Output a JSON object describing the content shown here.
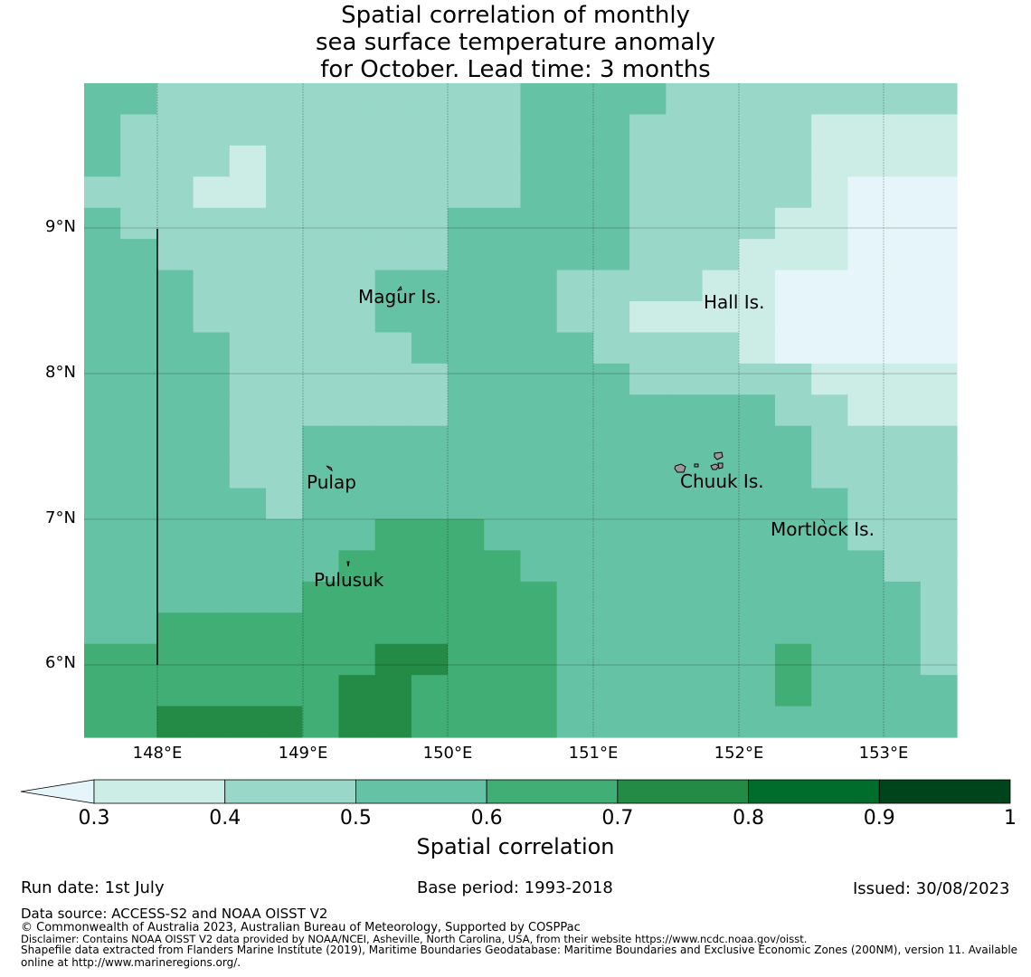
{
  "title": {
    "line1": "Spatial correlation of monthly",
    "line2": "sea surface temperature anomaly",
    "line3": "for October. Lead time: 3 months"
  },
  "map": {
    "lat_ticks": [
      "9°N",
      "8°N",
      "7°N",
      "6°N"
    ],
    "lon_ticks": [
      "148°E",
      "149°E",
      "150°E",
      "151°E",
      "152°E",
      "153°E"
    ],
    "places": {
      "magur": "Magur Is.",
      "hall": "Hall Is.",
      "pulap": "Pulap",
      "chuuk": "Chuuk Is.",
      "mortlock": "Mortlock Is.",
      "pulusuk": "Pulusuk"
    },
    "grid_values": [
      [
        0.55,
        0.55,
        0.45,
        0.45,
        0.45,
        0.45,
        0.45,
        0.45,
        0.45,
        0.45,
        0.45,
        0.45,
        0.55,
        0.55,
        0.55,
        0.55,
        0.45,
        0.45,
        0.45,
        0.45,
        0.45,
        0.45,
        0.45,
        0.45
      ],
      [
        0.55,
        0.45,
        0.45,
        0.45,
        0.45,
        0.45,
        0.45,
        0.45,
        0.45,
        0.45,
        0.45,
        0.45,
        0.55,
        0.55,
        0.55,
        0.45,
        0.45,
        0.45,
        0.45,
        0.45,
        0.35,
        0.35,
        0.35,
        0.35
      ],
      [
        0.55,
        0.45,
        0.45,
        0.45,
        0.35,
        0.45,
        0.45,
        0.45,
        0.45,
        0.45,
        0.45,
        0.45,
        0.55,
        0.55,
        0.55,
        0.45,
        0.45,
        0.45,
        0.45,
        0.45,
        0.35,
        0.35,
        0.35,
        0.35
      ],
      [
        0.45,
        0.45,
        0.45,
        0.35,
        0.35,
        0.45,
        0.45,
        0.45,
        0.45,
        0.45,
        0.45,
        0.45,
        0.55,
        0.55,
        0.55,
        0.45,
        0.45,
        0.45,
        0.45,
        0.45,
        0.35,
        0.25,
        0.25,
        0.25
      ],
      [
        0.55,
        0.45,
        0.45,
        0.45,
        0.45,
        0.45,
        0.45,
        0.45,
        0.45,
        0.45,
        0.55,
        0.55,
        0.55,
        0.55,
        0.55,
        0.45,
        0.45,
        0.45,
        0.45,
        0.35,
        0.35,
        0.25,
        0.25,
        0.25
      ],
      [
        0.55,
        0.55,
        0.45,
        0.45,
        0.45,
        0.45,
        0.45,
        0.45,
        0.45,
        0.45,
        0.55,
        0.55,
        0.55,
        0.55,
        0.55,
        0.45,
        0.45,
        0.45,
        0.35,
        0.35,
        0.35,
        0.25,
        0.25,
        0.25
      ],
      [
        0.55,
        0.55,
        0.55,
        0.45,
        0.45,
        0.45,
        0.45,
        0.45,
        0.55,
        0.55,
        0.55,
        0.55,
        0.55,
        0.45,
        0.45,
        0.45,
        0.45,
        0.35,
        0.35,
        0.25,
        0.25,
        0.25,
        0.25,
        0.25
      ],
      [
        0.55,
        0.55,
        0.55,
        0.45,
        0.45,
        0.45,
        0.45,
        0.45,
        0.55,
        0.55,
        0.55,
        0.55,
        0.55,
        0.45,
        0.45,
        0.35,
        0.35,
        0.35,
        0.35,
        0.25,
        0.25,
        0.25,
        0.25,
        0.25
      ],
      [
        0.55,
        0.55,
        0.55,
        0.55,
        0.45,
        0.45,
        0.45,
        0.45,
        0.45,
        0.55,
        0.55,
        0.55,
        0.55,
        0.55,
        0.45,
        0.45,
        0.45,
        0.45,
        0.35,
        0.25,
        0.25,
        0.25,
        0.25,
        0.25
      ],
      [
        0.55,
        0.55,
        0.55,
        0.55,
        0.45,
        0.45,
        0.45,
        0.45,
        0.45,
        0.45,
        0.55,
        0.55,
        0.55,
        0.55,
        0.55,
        0.45,
        0.45,
        0.45,
        0.45,
        0.45,
        0.35,
        0.35,
        0.35,
        0.35
      ],
      [
        0.55,
        0.55,
        0.55,
        0.55,
        0.45,
        0.45,
        0.45,
        0.45,
        0.45,
        0.45,
        0.55,
        0.55,
        0.55,
        0.55,
        0.55,
        0.55,
        0.55,
        0.55,
        0.55,
        0.45,
        0.45,
        0.35,
        0.35,
        0.35
      ],
      [
        0.55,
        0.55,
        0.55,
        0.55,
        0.45,
        0.45,
        0.55,
        0.55,
        0.55,
        0.55,
        0.55,
        0.55,
        0.55,
        0.55,
        0.55,
        0.55,
        0.55,
        0.55,
        0.55,
        0.55,
        0.45,
        0.45,
        0.45,
        0.45
      ],
      [
        0.55,
        0.55,
        0.55,
        0.55,
        0.45,
        0.45,
        0.55,
        0.55,
        0.55,
        0.55,
        0.55,
        0.55,
        0.55,
        0.55,
        0.55,
        0.55,
        0.55,
        0.55,
        0.55,
        0.55,
        0.45,
        0.45,
        0.45,
        0.45
      ],
      [
        0.55,
        0.55,
        0.55,
        0.55,
        0.55,
        0.45,
        0.55,
        0.55,
        0.55,
        0.55,
        0.55,
        0.55,
        0.55,
        0.55,
        0.55,
        0.55,
        0.55,
        0.55,
        0.55,
        0.55,
        0.55,
        0.45,
        0.45,
        0.45
      ],
      [
        0.55,
        0.55,
        0.55,
        0.55,
        0.55,
        0.55,
        0.55,
        0.55,
        0.65,
        0.65,
        0.65,
        0.55,
        0.55,
        0.55,
        0.55,
        0.55,
        0.55,
        0.55,
        0.55,
        0.55,
        0.55,
        0.45,
        0.45,
        0.45
      ],
      [
        0.55,
        0.55,
        0.55,
        0.55,
        0.55,
        0.55,
        0.55,
        0.65,
        0.65,
        0.65,
        0.65,
        0.65,
        0.55,
        0.55,
        0.55,
        0.55,
        0.55,
        0.55,
        0.55,
        0.55,
        0.55,
        0.55,
        0.45,
        0.45
      ],
      [
        0.55,
        0.55,
        0.55,
        0.55,
        0.55,
        0.55,
        0.65,
        0.65,
        0.65,
        0.65,
        0.65,
        0.65,
        0.65,
        0.55,
        0.55,
        0.55,
        0.55,
        0.55,
        0.55,
        0.55,
        0.55,
        0.55,
        0.55,
        0.45
      ],
      [
        0.55,
        0.55,
        0.65,
        0.65,
        0.65,
        0.65,
        0.65,
        0.65,
        0.65,
        0.65,
        0.65,
        0.65,
        0.65,
        0.55,
        0.55,
        0.55,
        0.55,
        0.55,
        0.55,
        0.55,
        0.55,
        0.55,
        0.55,
        0.45
      ],
      [
        0.65,
        0.65,
        0.65,
        0.65,
        0.65,
        0.65,
        0.65,
        0.65,
        0.75,
        0.75,
        0.65,
        0.65,
        0.65,
        0.55,
        0.55,
        0.55,
        0.55,
        0.55,
        0.55,
        0.65,
        0.55,
        0.55,
        0.55,
        0.45
      ],
      [
        0.65,
        0.65,
        0.65,
        0.65,
        0.65,
        0.65,
        0.65,
        0.75,
        0.75,
        0.65,
        0.65,
        0.65,
        0.65,
        0.55,
        0.55,
        0.55,
        0.55,
        0.55,
        0.55,
        0.65,
        0.55,
        0.55,
        0.55,
        0.55
      ],
      [
        0.65,
        0.65,
        0.75,
        0.75,
        0.75,
        0.75,
        0.65,
        0.75,
        0.75,
        0.65,
        0.65,
        0.65,
        0.65,
        0.55,
        0.55,
        0.55,
        0.55,
        0.55,
        0.55,
        0.55,
        0.55,
        0.55,
        0.55,
        0.55
      ]
    ]
  },
  "colorbar": {
    "tick_labels": [
      "0.3",
      "0.4",
      "0.5",
      "0.6",
      "0.7",
      "0.8",
      "0.9",
      "1"
    ],
    "colors": [
      "#ccece6",
      "#99d8c9",
      "#66c2a4",
      "#41ae76",
      "#238b45",
      "#006d2c",
      "#00441b"
    ],
    "under_color": "#e5f5f9",
    "label": "Spatial correlation"
  },
  "footer": {
    "run_date": "Run date: 1st July",
    "base_period": "Base period: 1993-2018",
    "issued": "Issued: 30/08/2023",
    "data_source": "Data source: ACCESS-S2 and NOAA OISST V2",
    "copyright": "© Commonwealth of Australia 2023, Australian Bureau of Meteorology, Supported by COSPPac",
    "disclaimer": "Disclaimer: Contains NOAA OISST V2 data provided by NOAA/NCEI, Asheville, North Carolina, USA, from their website https://www.ncdc.noaa.gov/oisst.",
    "shapefile1": "Shapefile data extracted from Flanders Marine Institute (2019), Maritime Boundaries Geodatabase: Maritime Boundaries and Exclusive Economic Zones (200NM), version 11. Available",
    "shapefile2": "online at http://www.marineregions.org/."
  }
}
